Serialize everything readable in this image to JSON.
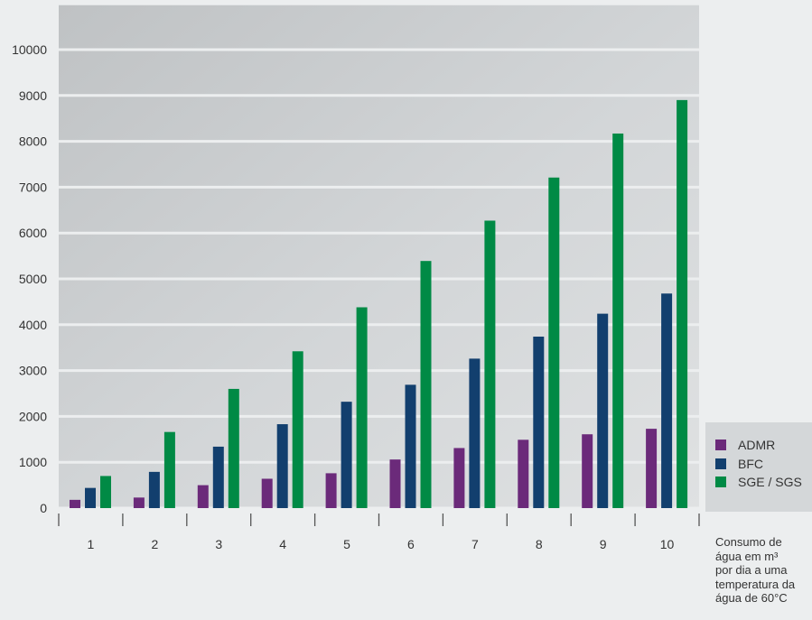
{
  "chart_data": {
    "type": "bar",
    "categories": [
      "1",
      "2",
      "3",
      "4",
      "5",
      "6",
      "7",
      "8",
      "9",
      "10"
    ],
    "series": [
      {
        "name": "ADMR",
        "color": "#6b2a7a",
        "values": [
          180,
          230,
          500,
          640,
          760,
          1060,
          1310,
          1490,
          1610,
          1730
        ]
      },
      {
        "name": "BFC",
        "color": "#123f6e",
        "values": [
          440,
          790,
          1340,
          1830,
          2320,
          2690,
          3260,
          3740,
          4240,
          4680
        ]
      },
      {
        "name": "SGE / SGS",
        "color": "#008a45",
        "values": [
          700,
          1660,
          2600,
          3420,
          4380,
          5390,
          6270,
          7210,
          8170,
          8900
        ]
      }
    ],
    "yticks": [
      "0",
      "1000",
      "2000",
      "3000",
      "4000",
      "5000",
      "6000",
      "7000",
      "8000",
      "9000",
      "10000"
    ],
    "ylim": [
      0,
      11000
    ],
    "xlabel": [
      "Consumo de",
      "água em m³",
      "por dia a uma",
      "temperatura da",
      "água de 60°C"
    ],
    "ylabel": "",
    "legend": [
      "ADMR",
      "BFC",
      "SGE / SGS"
    ],
    "legend_position": "right",
    "grid": true
  }
}
